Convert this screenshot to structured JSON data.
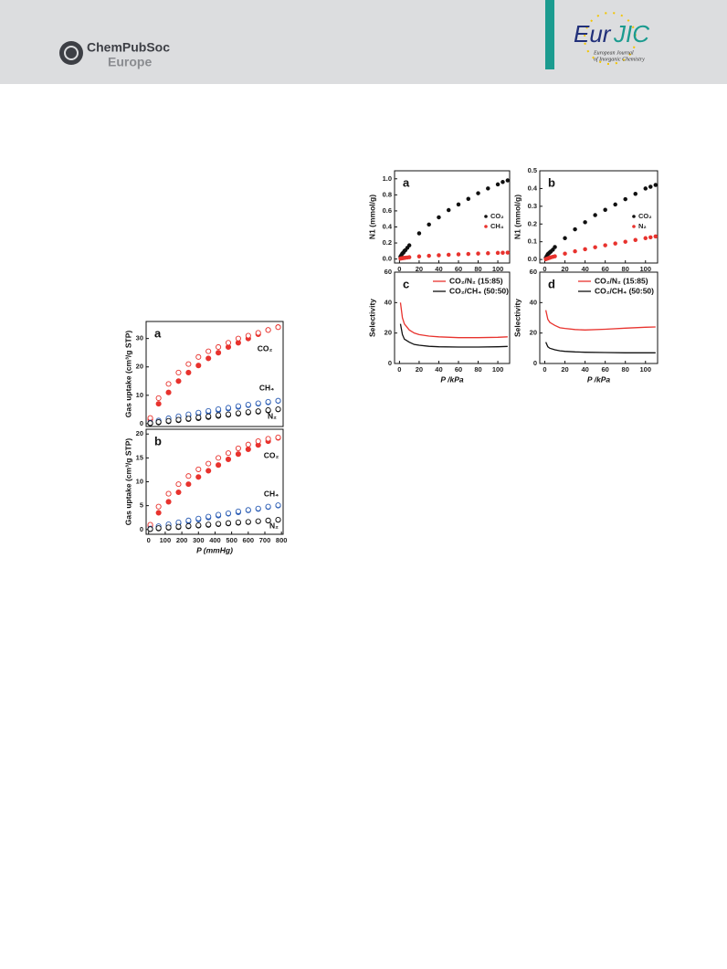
{
  "header": {
    "publisher": "ChemPubSoc",
    "publisher_region": "Europe",
    "journal_short_1": "Eur",
    "journal_short_2": "JIC",
    "journal_full_1": "European Journal",
    "journal_full_2": "of Inorganic Chemistry"
  },
  "chart_data": [
    {
      "type": "scatter",
      "label": "a",
      "y_label": "Gas uptake (cm³/g STP)",
      "xlim": [
        -15,
        810
      ],
      "ylim": [
        -1,
        36
      ],
      "yticks": [
        0,
        10,
        20,
        30
      ],
      "annotations": [
        "CO₂",
        "CH₄",
        "N₂"
      ],
      "x": [
        10,
        60,
        120,
        180,
        240,
        300,
        360,
        420,
        480,
        540,
        600,
        660,
        720,
        780
      ],
      "series": [
        {
          "color": "#e8332e",
          "marker": "filled",
          "values": [
            1.5,
            7,
            11,
            15,
            18,
            20.5,
            23,
            25,
            27,
            28.5,
            30,
            31.5,
            33,
            34
          ]
        },
        {
          "color": "#e8332e",
          "marker": "open",
          "values": [
            2,
            9,
            14,
            18,
            21,
            23.5,
            25.5,
            27,
            28.5,
            30,
            31,
            32,
            33,
            34
          ]
        },
        {
          "color": "#2e5fb5",
          "marker": "filled",
          "values": [
            0.2,
            0.8,
            1.5,
            2.2,
            2.8,
            3.5,
            4.1,
            4.7,
            5.3,
            5.9,
            6.5,
            7,
            7.5,
            8
          ]
        },
        {
          "color": "#2e5fb5",
          "marker": "open",
          "values": [
            0.4,
            1.1,
            1.9,
            2.6,
            3.3,
            3.9,
            4.5,
            5.1,
            5.6,
            6.2,
            6.7,
            7.2,
            7.7,
            8.1
          ]
        },
        {
          "color": "#111111",
          "marker": "filled",
          "values": [
            0.1,
            0.4,
            0.8,
            1.2,
            1.6,
            1.9,
            2.3,
            2.7,
            3.1,
            3.5,
            3.9,
            4.2,
            4.6,
            5
          ]
        },
        {
          "color": "#111111",
          "marker": "open",
          "values": [
            0.2,
            0.6,
            1,
            1.4,
            1.8,
            2.2,
            2.6,
            3,
            3.3,
            3.7,
            4.1,
            4.4,
            4.8,
            5.1
          ]
        }
      ]
    },
    {
      "type": "scatter",
      "label": "b",
      "y_label": "Gas uptake (cm³/g STP)",
      "x_label": "P (mmHg)",
      "xlim": [
        -15,
        810
      ],
      "ylim": [
        -1,
        21
      ],
      "yticks": [
        0,
        5,
        10,
        15,
        20
      ],
      "xticks": [
        0,
        100,
        200,
        300,
        400,
        500,
        600,
        700,
        800
      ],
      "annotations": [
        "CO₂",
        "CH₄",
        "N₂"
      ],
      "x": [
        10,
        60,
        120,
        180,
        240,
        300,
        360,
        420,
        480,
        540,
        600,
        660,
        720,
        780
      ],
      "series": [
        {
          "color": "#e8332e",
          "marker": "filled",
          "values": [
            0.8,
            3.5,
            5.8,
            7.8,
            9.5,
            11,
            12.3,
            13.5,
            14.7,
            15.8,
            16.8,
            17.7,
            18.5,
            19.2
          ]
        },
        {
          "color": "#e8332e",
          "marker": "open",
          "values": [
            1,
            4.8,
            7.5,
            9.5,
            11.2,
            12.6,
            13.8,
            15,
            16,
            17,
            17.8,
            18.5,
            19,
            19.3
          ]
        },
        {
          "color": "#2e5fb5",
          "marker": "filled",
          "values": [
            0.1,
            0.5,
            0.9,
            1.3,
            1.7,
            2.1,
            2.5,
            2.9,
            3.3,
            3.6,
            4,
            4.3,
            4.7,
            5
          ]
        },
        {
          "color": "#2e5fb5",
          "marker": "open",
          "values": [
            0.2,
            0.7,
            1.1,
            1.5,
            1.9,
            2.3,
            2.7,
            3.1,
            3.4,
            3.8,
            4.1,
            4.4,
            4.8,
            5.1
          ]
        },
        {
          "color": "#111111",
          "marker": "filled",
          "values": [
            0.05,
            0.2,
            0.35,
            0.5,
            0.65,
            0.8,
            0.95,
            1.1,
            1.25,
            1.4,
            1.55,
            1.7,
            1.85,
            2
          ]
        },
        {
          "color": "#111111",
          "marker": "open",
          "values": [
            0.1,
            0.3,
            0.45,
            0.6,
            0.75,
            0.9,
            1.05,
            1.2,
            1.35,
            1.5,
            1.6,
            1.75,
            1.9,
            2.05
          ]
        }
      ]
    },
    {
      "type": "scatter",
      "label": "a",
      "y_label": "N1 (mmol/g)",
      "xlim": [
        -5,
        112
      ],
      "ylim": [
        -0.05,
        1.1
      ],
      "yticks": [
        {
          "value": 0,
          "label": "0.0"
        },
        {
          "value": 0.2,
          "label": "0.2"
        },
        {
          "value": 0.4,
          "label": "0.4"
        },
        {
          "value": 0.6,
          "label": "0.6"
        },
        {
          "value": 0.8,
          "label": "0.8"
        },
        {
          "value": 1,
          "label": "1.0"
        }
      ],
      "xticks": [
        0,
        20,
        40,
        60,
        80,
        100
      ],
      "x": [
        1,
        2,
        3,
        4,
        5,
        6,
        8,
        10,
        20,
        30,
        40,
        50,
        60,
        70,
        80,
        90,
        100,
        105,
        110
      ],
      "series": [
        {
          "name": "CO₂",
          "color": "#111111",
          "marker": "filled",
          "values": [
            0.03,
            0.05,
            0.07,
            0.08,
            0.1,
            0.11,
            0.14,
            0.17,
            0.32,
            0.43,
            0.52,
            0.61,
            0.68,
            0.75,
            0.82,
            0.88,
            0.93,
            0.96,
            0.98
          ]
        },
        {
          "name": "CH₄",
          "color": "#e8332e",
          "marker": "filled",
          "values": [
            0.005,
            0.008,
            0.01,
            0.012,
            0.014,
            0.016,
            0.019,
            0.022,
            0.032,
            0.04,
            0.047,
            0.053,
            0.058,
            0.063,
            0.068,
            0.072,
            0.076,
            0.078,
            0.08
          ]
        }
      ]
    },
    {
      "type": "scatter",
      "label": "b",
      "y_label": "N1 (mmol/g)",
      "xlim": [
        -5,
        112
      ],
      "ylim": [
        -0.02,
        0.5
      ],
      "yticks": [
        {
          "value": 0,
          "label": "0.0"
        },
        0.1,
        0.2,
        0.3,
        0.4,
        0.5
      ],
      "xticks": [
        0,
        20,
        40,
        60,
        80,
        100
      ],
      "x": [
        1,
        2,
        3,
        4,
        5,
        6,
        8,
        10,
        20,
        30,
        40,
        50,
        60,
        70,
        80,
        90,
        100,
        105,
        110
      ],
      "series": [
        {
          "name": "CO₂",
          "color": "#111111",
          "marker": "filled",
          "values": [
            0.01,
            0.02,
            0.03,
            0.035,
            0.04,
            0.045,
            0.055,
            0.07,
            0.12,
            0.17,
            0.21,
            0.25,
            0.28,
            0.31,
            0.34,
            0.37,
            0.4,
            0.41,
            0.42
          ]
        },
        {
          "name": "N₂",
          "color": "#e8332e",
          "marker": "filled",
          "values": [
            0.002,
            0.004,
            0.006,
            0.008,
            0.01,
            0.012,
            0.015,
            0.018,
            0.033,
            0.046,
            0.058,
            0.069,
            0.08,
            0.09,
            0.1,
            0.11,
            0.12,
            0.125,
            0.13
          ]
        }
      ]
    },
    {
      "type": "line",
      "label": "c",
      "y_label": "Selectivity",
      "x_label": "P /kPa",
      "xlim": [
        -5,
        112
      ],
      "ylim": [
        0,
        60
      ],
      "yticks": [
        0,
        20,
        40,
        60
      ],
      "xticks": [
        0,
        20,
        40,
        60,
        80,
        100
      ],
      "x": [
        1,
        3,
        5,
        10,
        15,
        20,
        30,
        40,
        60,
        80,
        100,
        110
      ],
      "series": [
        {
          "name": "CO₂/N₂ (15:85)",
          "color": "#e8332e",
          "values": [
            40,
            30,
            26,
            22,
            20,
            19,
            18,
            17.5,
            17,
            17,
            17.2,
            17.5
          ]
        },
        {
          "name": "CO₂/CH₄ (50:50)",
          "color": "#111111",
          "values": [
            26,
            19,
            16,
            14,
            12.5,
            12,
            11.3,
            11,
            10.8,
            10.8,
            11,
            11.2
          ]
        }
      ]
    },
    {
      "type": "line",
      "label": "d",
      "y_label": "Selectivity",
      "x_label": "P /kPa",
      "xlim": [
        -5,
        112
      ],
      "ylim": [
        0,
        60
      ],
      "yticks": [
        0,
        20,
        40,
        60
      ],
      "xticks": [
        0,
        20,
        40,
        60,
        80,
        100
      ],
      "x": [
        1,
        3,
        5,
        10,
        15,
        20,
        30,
        40,
        60,
        80,
        100,
        110
      ],
      "series": [
        {
          "name": "CO₂/N₂ (15:85)",
          "color": "#e8332e",
          "values": [
            35,
            29,
            27,
            25,
            23.5,
            23,
            22.3,
            22,
            22.5,
            23.2,
            23.8,
            24
          ]
        },
        {
          "name": "CO₂/CH₄ (50:50)",
          "color": "#111111",
          "values": [
            14,
            11,
            10,
            9,
            8.3,
            8,
            7.6,
            7.4,
            7.2,
            7,
            7,
            7
          ]
        }
      ]
    }
  ]
}
